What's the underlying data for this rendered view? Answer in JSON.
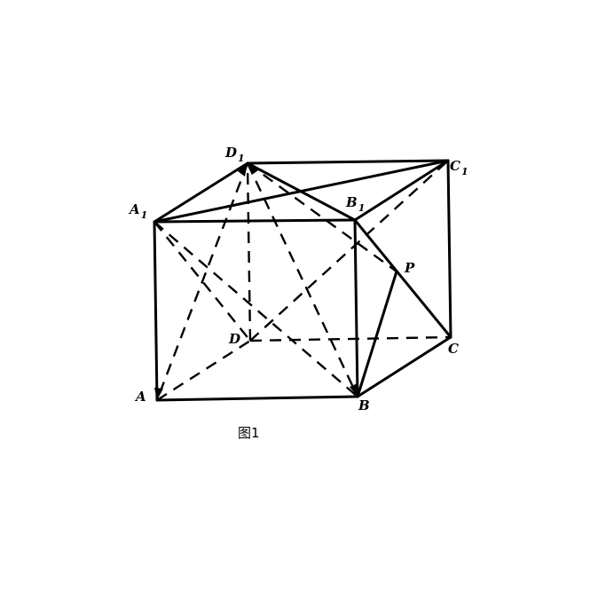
{
  "vertices": {
    "A": {
      "letter": "A",
      "sub": ""
    },
    "B": {
      "letter": "B",
      "sub": ""
    },
    "C": {
      "letter": "C",
      "sub": ""
    },
    "D": {
      "letter": "D",
      "sub": ""
    },
    "A1": {
      "letter": "A",
      "sub": "1"
    },
    "B1": {
      "letter": "B",
      "sub": "1"
    },
    "C1": {
      "letter": "C",
      "sub": "1"
    },
    "D1": {
      "letter": "D",
      "sub": "1"
    },
    "P": {
      "letter": "P",
      "sub": ""
    }
  },
  "caption": "图1"
}
